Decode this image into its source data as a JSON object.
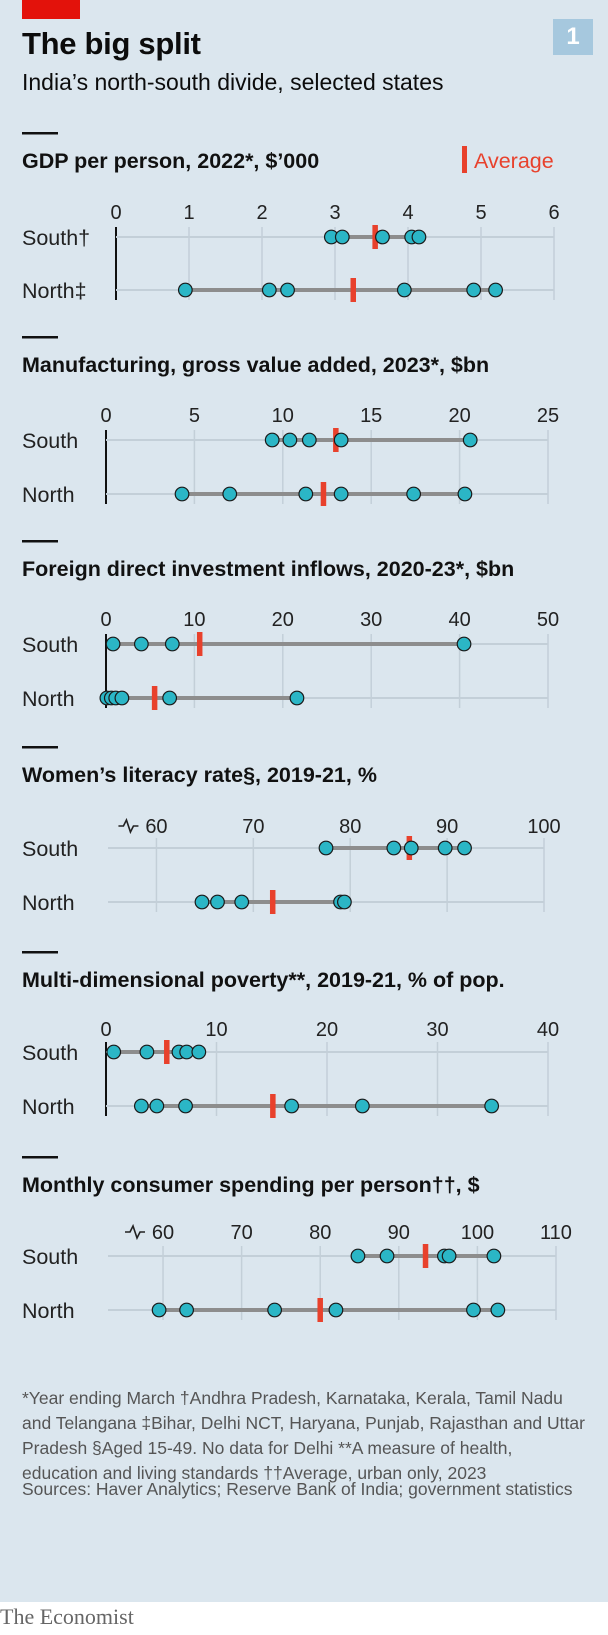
{
  "title": "The big split",
  "subtitle": "India’s north-south divide, selected states",
  "badge": "1",
  "legend_label": "Average",
  "colors": {
    "dot": "#2bb6c6",
    "average": "#e8412c",
    "line": "#8d8d8d",
    "background": "#dbe6ee",
    "tag": "#e3120b"
  },
  "chart_data": [
    {
      "type": "scatter",
      "title": "GDP per person, 2022*, $’000",
      "xlim": [
        0,
        6
      ],
      "ticks": [
        "0",
        "1",
        "2",
        "3",
        "4",
        "5",
        "6"
      ],
      "broken_axis": false,
      "rows": [
        {
          "label": "South†",
          "values": [
            2.95,
            3.1,
            3.65,
            4.05,
            4.15
          ],
          "average": 3.55
        },
        {
          "label": "North‡",
          "values": [
            0.95,
            2.1,
            2.35,
            3.95,
            4.9,
            5.2
          ],
          "average": 3.25
        }
      ]
    },
    {
      "type": "scatter",
      "title": "Manufacturing, gross value added, 2023*, $bn",
      "xlim": [
        0,
        25
      ],
      "ticks": [
        "0",
        "5",
        "10",
        "15",
        "20",
        "25"
      ],
      "broken_axis": false,
      "rows": [
        {
          "label": "South",
          "values": [
            9.4,
            10.4,
            11.5,
            13.3,
            20.6
          ],
          "average": 13
        },
        {
          "label": "North",
          "values": [
            4.3,
            7,
            11.3,
            13.3,
            17.4,
            20.3
          ],
          "average": 12.3
        }
      ]
    },
    {
      "type": "scatter",
      "title": "Foreign direct investment inflows, 2020-23*, $bn",
      "xlim": [
        0,
        50
      ],
      "ticks": [
        "0",
        "10",
        "20",
        "30",
        "40",
        "50"
      ],
      "broken_axis": false,
      "rows": [
        {
          "label": "South",
          "values": [
            0.8,
            4,
            7.5,
            40.5
          ],
          "average": 10.6
        },
        {
          "label": "North",
          "values": [
            0.1,
            0.6,
            1.1,
            1.8,
            7.2,
            21.6
          ],
          "average": 5.5
        }
      ]
    },
    {
      "type": "scatter",
      "title": "Women’s literacy rate§, 2019-21, %",
      "xlim": [
        55,
        100
      ],
      "ticks": [
        "60",
        "70",
        "80",
        "90",
        "100"
      ],
      "tick_values": [
        60,
        70,
        80,
        90,
        100
      ],
      "broken_axis": true,
      "rows": [
        {
          "label": "South",
          "values": [
            77.5,
            84.5,
            86.3,
            89.8,
            91.8
          ],
          "average": 86.1
        },
        {
          "label": "North",
          "values": [
            64.7,
            66.3,
            68.8,
            79,
            79.4
          ],
          "average": 72
        }
      ]
    },
    {
      "type": "scatter",
      "title": "Multi-dimensional poverty**, 2019-21, % of pop.",
      "xlim": [
        0,
        40
      ],
      "ticks": [
        "0",
        "10",
        "20",
        "30",
        "40"
      ],
      "broken_axis": false,
      "rows": [
        {
          "label": "South",
          "values": [
            0.7,
            3.7,
            6.6,
            7.3,
            8.4
          ],
          "average": 5.5
        },
        {
          "label": "North",
          "values": [
            3.2,
            4.6,
            7.2,
            16.8,
            23.2,
            34.9
          ],
          "average": 15.1
        }
      ]
    },
    {
      "type": "scatter",
      "title": "Monthly consumer spending per person††, $",
      "xlim": [
        53,
        110
      ],
      "ticks": [
        "60",
        "70",
        "80",
        "90",
        "100",
        "110"
      ],
      "tick_values": [
        60,
        70,
        80,
        90,
        100,
        110
      ],
      "broken_axis": true,
      "rows": [
        {
          "label": "South",
          "values": [
            84.8,
            88.5,
            95.8,
            96.4,
            102.1
          ],
          "average": 93.4
        },
        {
          "label": "North",
          "values": [
            59.5,
            63,
            74.2,
            82,
            99.5,
            102.6
          ],
          "average": 80
        }
      ]
    }
  ],
  "footnote": "*Year ending March   †Andhra Pradesh, Karnataka, Kerala, Tamil Nadu and Telangana   ‡Bihar, Delhi NCT, Haryana, Punjab, Rajasthan and Uttar Pradesh   §Aged 15-49. No data for Delhi   **A measure of health, education and living standards   ††Average, urban only, 2023",
  "sources": "Sources: Haver Analytics; Reserve Bank of India; government statistics",
  "brand": "The Economist"
}
